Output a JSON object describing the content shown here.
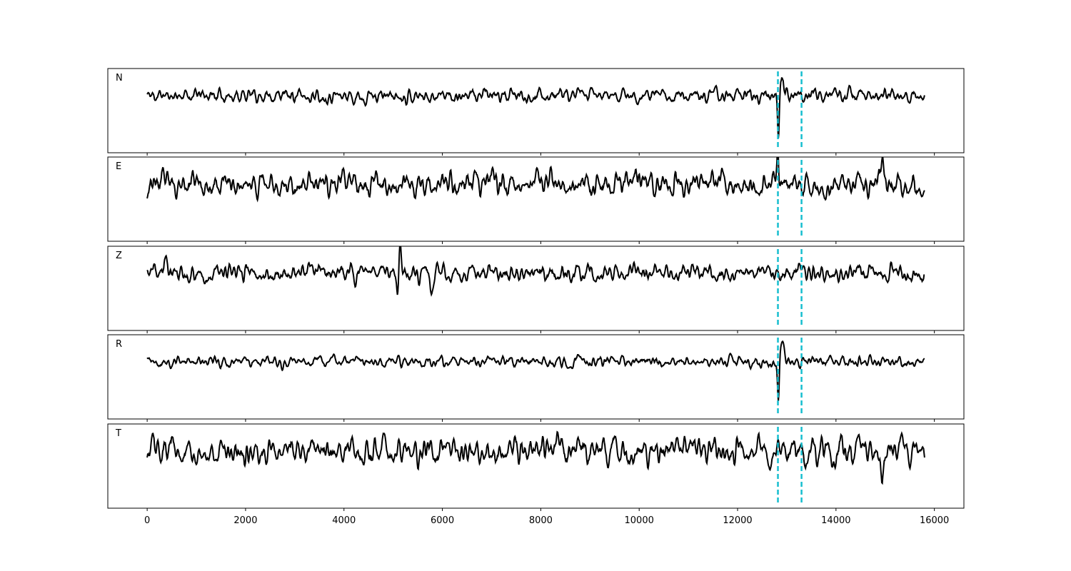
{
  "chart_data": {
    "type": "line",
    "xlim": [
      -800,
      16600
    ],
    "xticks": [
      0,
      2000,
      4000,
      6000,
      8000,
      10000,
      12000,
      14000,
      16000
    ],
    "x_range": [
      0,
      15800
    ],
    "markers": {
      "x": [
        12820,
        13300
      ],
      "color": "#17becf",
      "style": "dashed"
    },
    "trace_color": "#000000",
    "panels": [
      {
        "label": "N",
        "seed": 11,
        "base_amp": 0.12,
        "bursts": [
          {
            "x": 12830,
            "amp": -0.9,
            "width": 25
          },
          {
            "x": 12900,
            "amp": 0.35,
            "width": 60
          }
        ]
      },
      {
        "label": "E",
        "seed": 23,
        "base_amp": 0.22,
        "bursts": [
          {
            "x": 12820,
            "amp": 0.8,
            "width": 25
          },
          {
            "x": 14950,
            "amp": 0.45,
            "width": 50
          }
        ]
      },
      {
        "label": "Z",
        "seed": 37,
        "base_amp": 0.16,
        "bursts": [
          {
            "x": 5100,
            "amp": -0.75,
            "width": 35
          },
          {
            "x": 5130,
            "amp": 0.75,
            "width": 35
          },
          {
            "x": 380,
            "amp": 0.35,
            "width": 40
          },
          {
            "x": 5800,
            "amp": -0.3,
            "width": 60
          }
        ]
      },
      {
        "label": "R",
        "seed": 41,
        "base_amp": 0.1,
        "bursts": [
          {
            "x": 12830,
            "amp": -0.85,
            "width": 25
          },
          {
            "x": 12900,
            "amp": 0.4,
            "width": 60
          }
        ]
      },
      {
        "label": "T",
        "seed": 53,
        "base_amp": 0.24,
        "bursts": [
          {
            "x": 8350,
            "amp": 0.35,
            "width": 40
          },
          {
            "x": 14950,
            "amp": -0.55,
            "width": 40
          },
          {
            "x": 10200,
            "amp": -0.3,
            "width": 40
          }
        ]
      }
    ]
  }
}
